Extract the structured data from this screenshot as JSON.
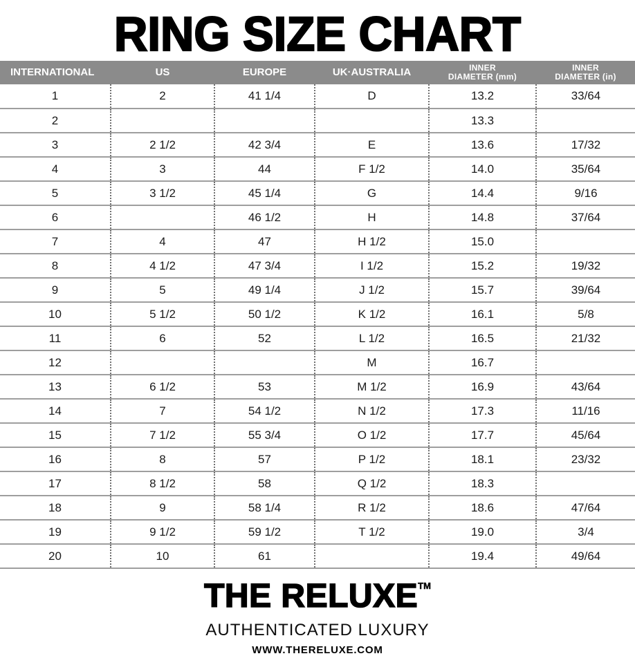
{
  "title": "RING SIZE CHART",
  "table": {
    "columns": [
      "INTERNATIONAL",
      "US",
      "EUROPE",
      "UK·AUSTRALIA",
      "INNER\nDIAMETER (mm)",
      "INNER\nDIAMETER (in)"
    ],
    "rows": [
      [
        "1",
        "2",
        "41 1/4",
        "D",
        "13.2",
        "33/64"
      ],
      [
        "2",
        "",
        "",
        "",
        "13.3",
        ""
      ],
      [
        "3",
        "2 1/2",
        "42 3/4",
        "E",
        "13.6",
        "17/32"
      ],
      [
        "4",
        "3",
        "44",
        "F 1/2",
        "14.0",
        "35/64"
      ],
      [
        "5",
        "3 1/2",
        "45 1/4",
        "G",
        "14.4",
        "9/16"
      ],
      [
        "6",
        "",
        "46 1/2",
        "H",
        "14.8",
        "37/64"
      ],
      [
        "7",
        "4",
        "47",
        "H 1/2",
        "15.0",
        ""
      ],
      [
        "8",
        "4 1/2",
        "47 3/4",
        "I 1/2",
        "15.2",
        "19/32"
      ],
      [
        "9",
        "5",
        "49 1/4",
        "J 1/2",
        "15.7",
        "39/64"
      ],
      [
        "10",
        "5 1/2",
        "50 1/2",
        "K 1/2",
        "16.1",
        "5/8"
      ],
      [
        "11",
        "6",
        "52",
        "L 1/2",
        "16.5",
        "21/32"
      ],
      [
        "12",
        "",
        "",
        "M",
        "16.7",
        ""
      ],
      [
        "13",
        "6 1/2",
        "53",
        "M 1/2",
        "16.9",
        "43/64"
      ],
      [
        "14",
        "7",
        "54 1/2",
        "N 1/2",
        "17.3",
        "11/16"
      ],
      [
        "15",
        "7 1/2",
        "55 3/4",
        "O 1/2",
        "17.7",
        "45/64"
      ],
      [
        "16",
        "8",
        "57",
        "P 1/2",
        "18.1",
        "23/32"
      ],
      [
        "17",
        "8 1/2",
        "58",
        "Q 1/2",
        "18.3",
        ""
      ],
      [
        "18",
        "9",
        "58 1/4",
        "R 1/2",
        "18.6",
        "47/64"
      ],
      [
        "19",
        "9 1/2",
        "59 1/2",
        "T 1/2",
        "19.0",
        "3/4"
      ],
      [
        "20",
        "10",
        "61",
        "",
        "19.4",
        "49/64"
      ]
    ]
  },
  "footer": {
    "brand": "THE RELUXE",
    "trademark": "TM",
    "tagline": "AUTHENTICATED LUXURY",
    "website": "WWW.THERELUXE.COM"
  },
  "colors": {
    "header_background": "#8b8b8b",
    "header_text": "#ffffff",
    "row_line": "#9e9e9e",
    "column_dots": "#6f6f6f",
    "text": "#1a1a1a"
  }
}
